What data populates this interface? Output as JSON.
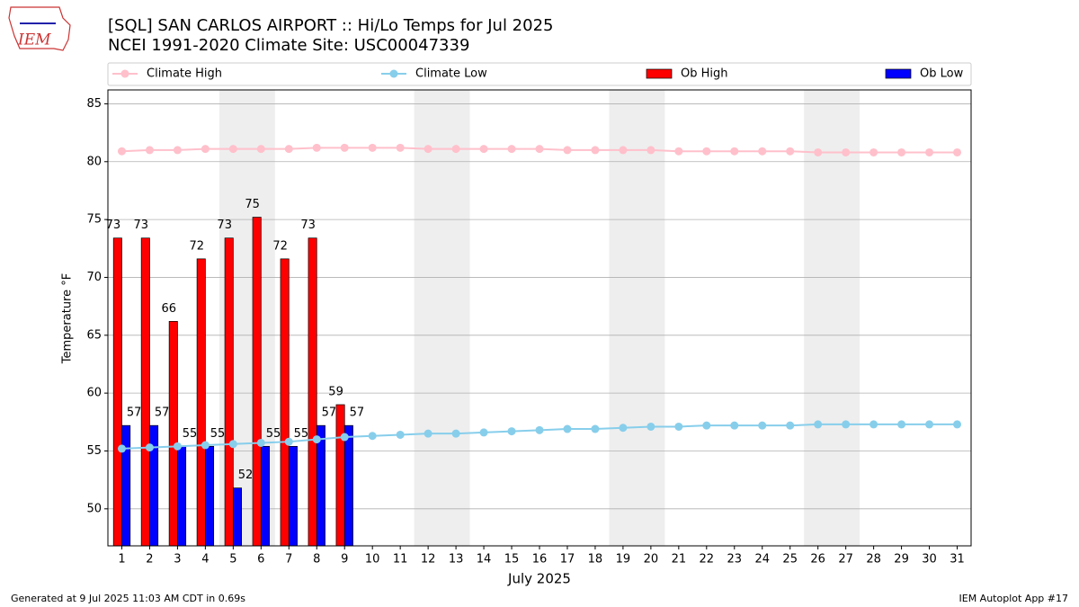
{
  "chart_data": {
    "type": "bar_line",
    "title": "[SQL] SAN CARLOS AIRPORT :: Hi/Lo Temps for Jul 2025",
    "subtitle": "NCEI 1991-2020 Climate Site: USC00047339",
    "logo_text": "IEM",
    "ylabel": "Temperature °F",
    "xlabel": "July 2025",
    "footer_left": "Generated at 9 Jul 2025 11:03 AM CDT in 0.69s",
    "footer_right": "IEM Autoplot App #17",
    "x": [
      1,
      2,
      3,
      4,
      5,
      6,
      7,
      8,
      9,
      10,
      11,
      12,
      13,
      14,
      15,
      16,
      17,
      18,
      19,
      20,
      21,
      22,
      23,
      24,
      25,
      26,
      27,
      28,
      29,
      30,
      31
    ],
    "xlim": [
      0.5,
      31.5
    ],
    "xticks": [
      1,
      2,
      3,
      4,
      5,
      6,
      7,
      8,
      9,
      10,
      11,
      12,
      13,
      14,
      15,
      16,
      17,
      18,
      19,
      20,
      21,
      22,
      23,
      24,
      25,
      26,
      27,
      28,
      29,
      30,
      31
    ],
    "ylim": [
      46.8,
      86.2
    ],
    "yticks": [
      50,
      55,
      60,
      65,
      70,
      75,
      80,
      85
    ],
    "grid": true,
    "shaded_spans": [
      [
        4.5,
        6.5
      ],
      [
        11.5,
        13.5
      ],
      [
        18.5,
        20.5
      ],
      [
        25.5,
        27.5
      ]
    ],
    "series": [
      {
        "name": "Climate High",
        "kind": "line",
        "color": "#ffc0cb",
        "values": [
          80.9,
          81.0,
          81.0,
          81.1,
          81.1,
          81.1,
          81.1,
          81.2,
          81.2,
          81.2,
          81.2,
          81.1,
          81.1,
          81.1,
          81.1,
          81.1,
          81.0,
          81.0,
          81.0,
          81.0,
          80.9,
          80.9,
          80.9,
          80.9,
          80.9,
          80.8,
          80.8,
          80.8,
          80.8,
          80.8,
          80.8
        ]
      },
      {
        "name": "Climate Low",
        "kind": "line",
        "color": "#87ceeb",
        "values": [
          55.2,
          55.3,
          55.4,
          55.5,
          55.6,
          55.7,
          55.8,
          56.0,
          56.2,
          56.3,
          56.4,
          56.5,
          56.5,
          56.6,
          56.7,
          56.8,
          56.9,
          56.9,
          57.0,
          57.1,
          57.1,
          57.2,
          57.2,
          57.2,
          57.2,
          57.3,
          57.3,
          57.3,
          57.3,
          57.3,
          57.3
        ]
      },
      {
        "name": "Ob High",
        "kind": "bar",
        "color": "#ff0000",
        "values": [
          73.4,
          73.4,
          66.2,
          71.6,
          73.4,
          75.2,
          71.6,
          73.4,
          59.0,
          null,
          null,
          null,
          null,
          null,
          null,
          null,
          null,
          null,
          null,
          null,
          null,
          null,
          null,
          null,
          null,
          null,
          null,
          null,
          null,
          null,
          null
        ],
        "value_labels": [
          "73",
          "73",
          "66",
          "72",
          "73",
          "75",
          "72",
          "73",
          "59",
          null,
          null,
          null,
          null,
          null,
          null,
          null,
          null,
          null,
          null,
          null,
          null,
          null,
          null,
          null,
          null,
          null,
          null,
          null,
          null,
          null,
          null
        ]
      },
      {
        "name": "Ob Low",
        "kind": "bar",
        "color": "#0000ff",
        "values": [
          57.2,
          57.2,
          55.4,
          55.4,
          51.8,
          55.4,
          55.4,
          57.2,
          57.2,
          null,
          null,
          null,
          null,
          null,
          null,
          null,
          null,
          null,
          null,
          null,
          null,
          null,
          null,
          null,
          null,
          null,
          null,
          null,
          null,
          null,
          null
        ],
        "value_labels": [
          "57",
          "57",
          "55",
          "55",
          "52",
          "55",
          "55",
          "57",
          "57",
          null,
          null,
          null,
          null,
          null,
          null,
          null,
          null,
          null,
          null,
          null,
          null,
          null,
          null,
          null,
          null,
          null,
          null,
          null,
          null,
          null,
          null
        ]
      }
    ]
  }
}
